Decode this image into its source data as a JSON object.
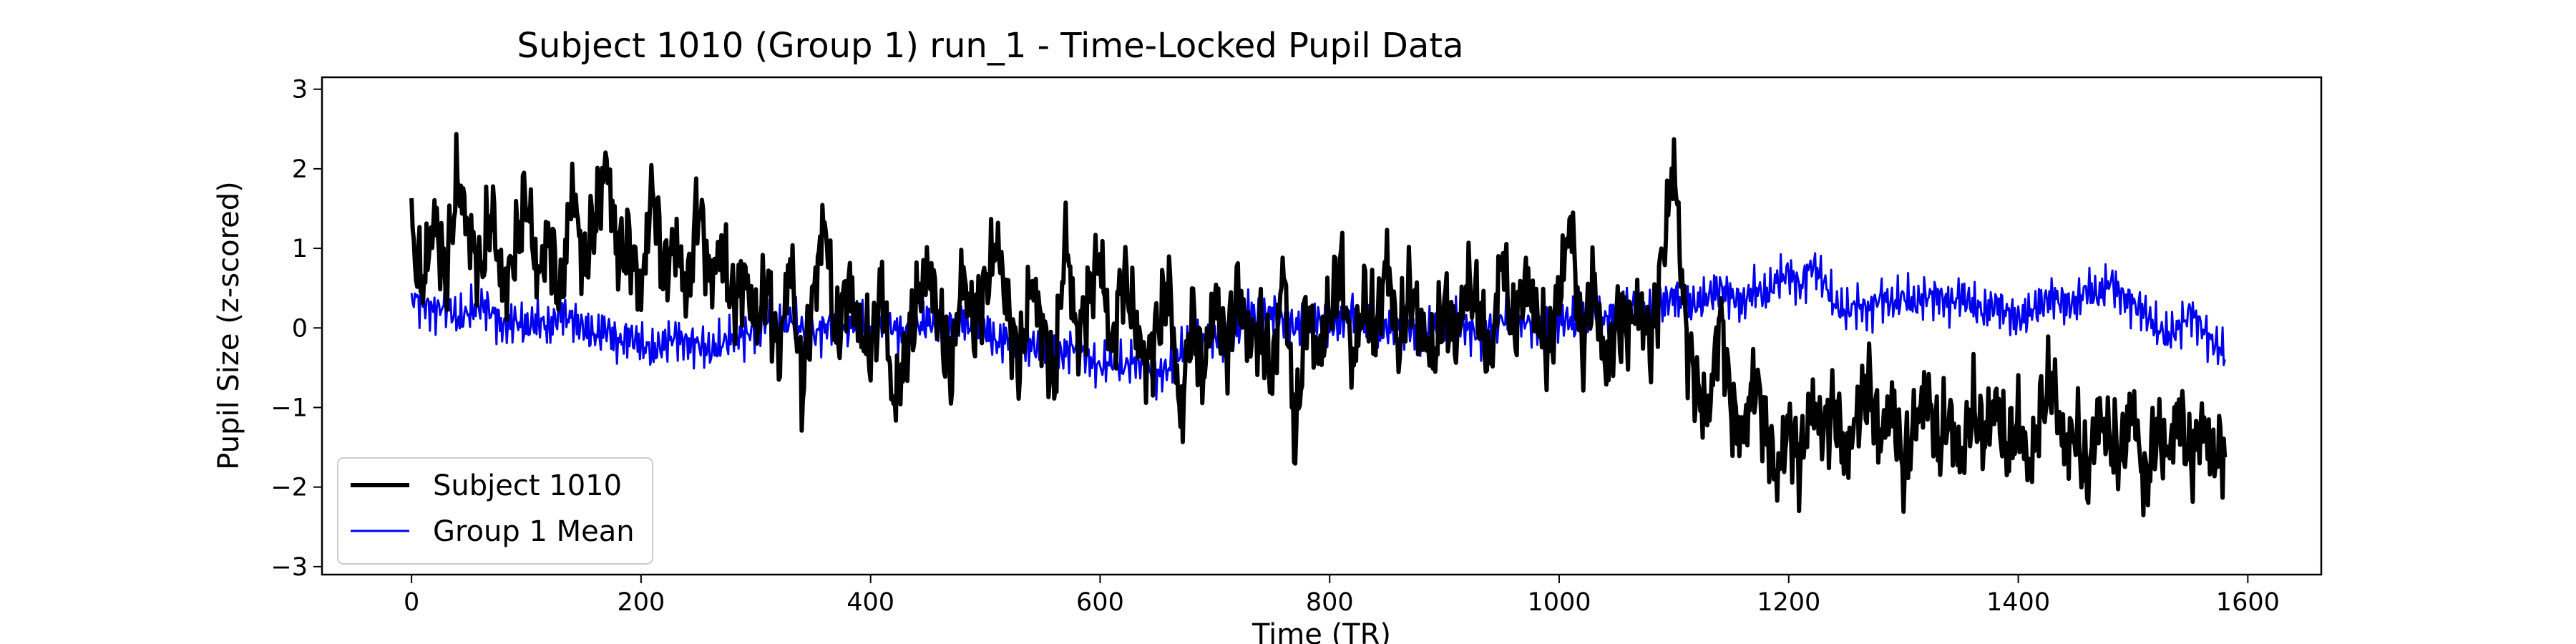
{
  "chart_data": {
    "type": "line",
    "title": "Subject 1010 (Group 1) run_1 - Time-Locked Pupil Data",
    "xlabel": "Time (TR)",
    "ylabel": "Pupil Size (z-scored)",
    "xlim": [
      -78,
      1664
    ],
    "ylim": [
      -3.1,
      3.15
    ],
    "xticks": [
      0,
      200,
      400,
      600,
      800,
      1000,
      1200,
      1400,
      1600
    ],
    "yticks": [
      -3,
      -2,
      -1,
      0,
      1,
      2,
      3
    ],
    "grid": false,
    "legend": "lower-left",
    "series": [
      {
        "name": "Subject 1010",
        "color": "#000000",
        "values_every_10_TR": [
          1.1,
          0.55,
          1.4,
          0.6,
          1.9,
          1.2,
          0.7,
          1.5,
          0.4,
          1.0,
          1.7,
          0.6,
          1.2,
          0.3,
          1.8,
          0.8,
          1.4,
          2.1,
          0.9,
          1.1,
          0.4,
          1.8,
          0.7,
          1.1,
          0.4,
          1.6,
          0.6,
          1.0,
          0.3,
          0.7,
          0.0,
          0.6,
          -0.4,
          0.9,
          -0.8,
          0.4,
          1.4,
          -0.2,
          0.6,
          0.0,
          -0.3,
          0.5,
          -1.0,
          -0.4,
          0.3,
          0.8,
          0.1,
          -0.6,
          0.7,
          0.0,
          0.5,
          1.1,
          0.2,
          -0.5,
          0.6,
          0.0,
          -0.7,
          1.2,
          -0.2,
          0.4,
          0.9,
          -0.3,
          0.7,
          0.1,
          -0.5,
          0.0,
          0.6,
          -1.2,
          0.2,
          -0.6,
          0.4,
          -0.3,
          0.5,
          -0.2,
          0.0,
          -0.6,
          0.8,
          -1.5,
          0.3,
          -0.4,
          0.2,
          0.8,
          -0.5,
          0.4,
          -0.1,
          0.9,
          -0.3,
          0.5,
          0.0,
          -0.4,
          0.3,
          -0.2,
          0.6,
          0.2,
          -0.5,
          1.0,
          -0.1,
          0.6,
          0.2,
          -0.3,
          0.4,
          1.4,
          -0.3,
          0.6,
          -0.5,
          0.1,
          0.0,
          0.3,
          -0.2,
          0.9,
          2.1,
          0.0,
          -0.8,
          -1.1,
          0.2,
          -1.0,
          -1.4,
          -0.6,
          -1.2,
          -1.9,
          -1.2,
          -1.7,
          -0.9,
          -1.3,
          -1.0,
          -1.6,
          -1.1,
          -0.7,
          -1.4,
          -1.0,
          -1.8,
          -1.2,
          -0.8,
          -1.5,
          -1.1,
          -1.7,
          -1.0,
          -1.4,
          -0.9,
          -1.6,
          -1.2,
          -1.8,
          -1.0,
          -0.7,
          -1.5,
          -1.3,
          -1.9,
          -1.1,
          -1.4,
          -1.6,
          -1.0,
          -2.0,
          -1.3,
          -1.6,
          -1.0,
          -1.7,
          -1.2,
          -1.6,
          -1.5
        ]
      },
      {
        "name": "Group 1 Mean",
        "color": "#0000ee",
        "values_every_10_TR": [
          0.4,
          0.3,
          0.2,
          0.3,
          0.1,
          0.2,
          0.3,
          0.2,
          0.0,
          0.1,
          0.0,
          0.1,
          0.0,
          0.2,
          0.1,
          0.0,
          -0.1,
          0.0,
          -0.2,
          -0.1,
          -0.2,
          -0.3,
          -0.2,
          -0.1,
          -0.2,
          -0.2,
          -0.3,
          -0.2,
          -0.1,
          -0.1,
          0.0,
          0.1,
          0.0,
          0.1,
          0.0,
          -0.1,
          0.0,
          0.1,
          0.0,
          0.1,
          0.0,
          0.1,
          0.0,
          -0.1,
          0.0,
          0.1,
          0.0,
          0.0,
          0.1,
          0.0,
          0.0,
          -0.2,
          -0.1,
          -0.3,
          -0.2,
          -0.3,
          -0.4,
          -0.3,
          -0.2,
          -0.4,
          -0.5,
          -0.4,
          -0.5,
          -0.4,
          -0.5,
          -0.6,
          -0.5,
          -0.3,
          -0.2,
          -0.2,
          -0.1,
          -0.1,
          0.0,
          0.2,
          0.1,
          0.2,
          0.1,
          0.0,
          0.1,
          0.1,
          0.0,
          0.1,
          0.2,
          0.1,
          -0.1,
          0.0,
          0.1,
          0.0,
          -0.1,
          0.0,
          0.0,
          0.1,
          0.0,
          -0.1,
          0.0,
          0.1,
          0.2,
          0.1,
          0.0,
          0.1,
          0.1,
          0.1,
          0.0,
          0.2,
          0.1,
          0.2,
          0.3,
          0.2,
          0.2,
          0.3,
          0.4,
          0.3,
          0.3,
          0.4,
          0.5,
          0.4,
          0.3,
          0.5,
          0.4,
          0.6,
          0.7,
          0.5,
          0.8,
          0.6,
          0.3,
          0.2,
          0.3,
          0.2,
          0.4,
          0.3,
          0.4,
          0.3,
          0.4,
          0.4,
          0.3,
          0.4,
          0.3,
          0.2,
          0.3,
          0.2,
          0.1,
          0.2,
          0.3,
          0.4,
          0.3,
          0.3,
          0.5,
          0.4,
          0.6,
          0.4,
          0.3,
          0.2,
          0.0,
          -0.1,
          0.0,
          0.2,
          0.0,
          -0.2,
          -0.3
        ]
      }
    ]
  }
}
